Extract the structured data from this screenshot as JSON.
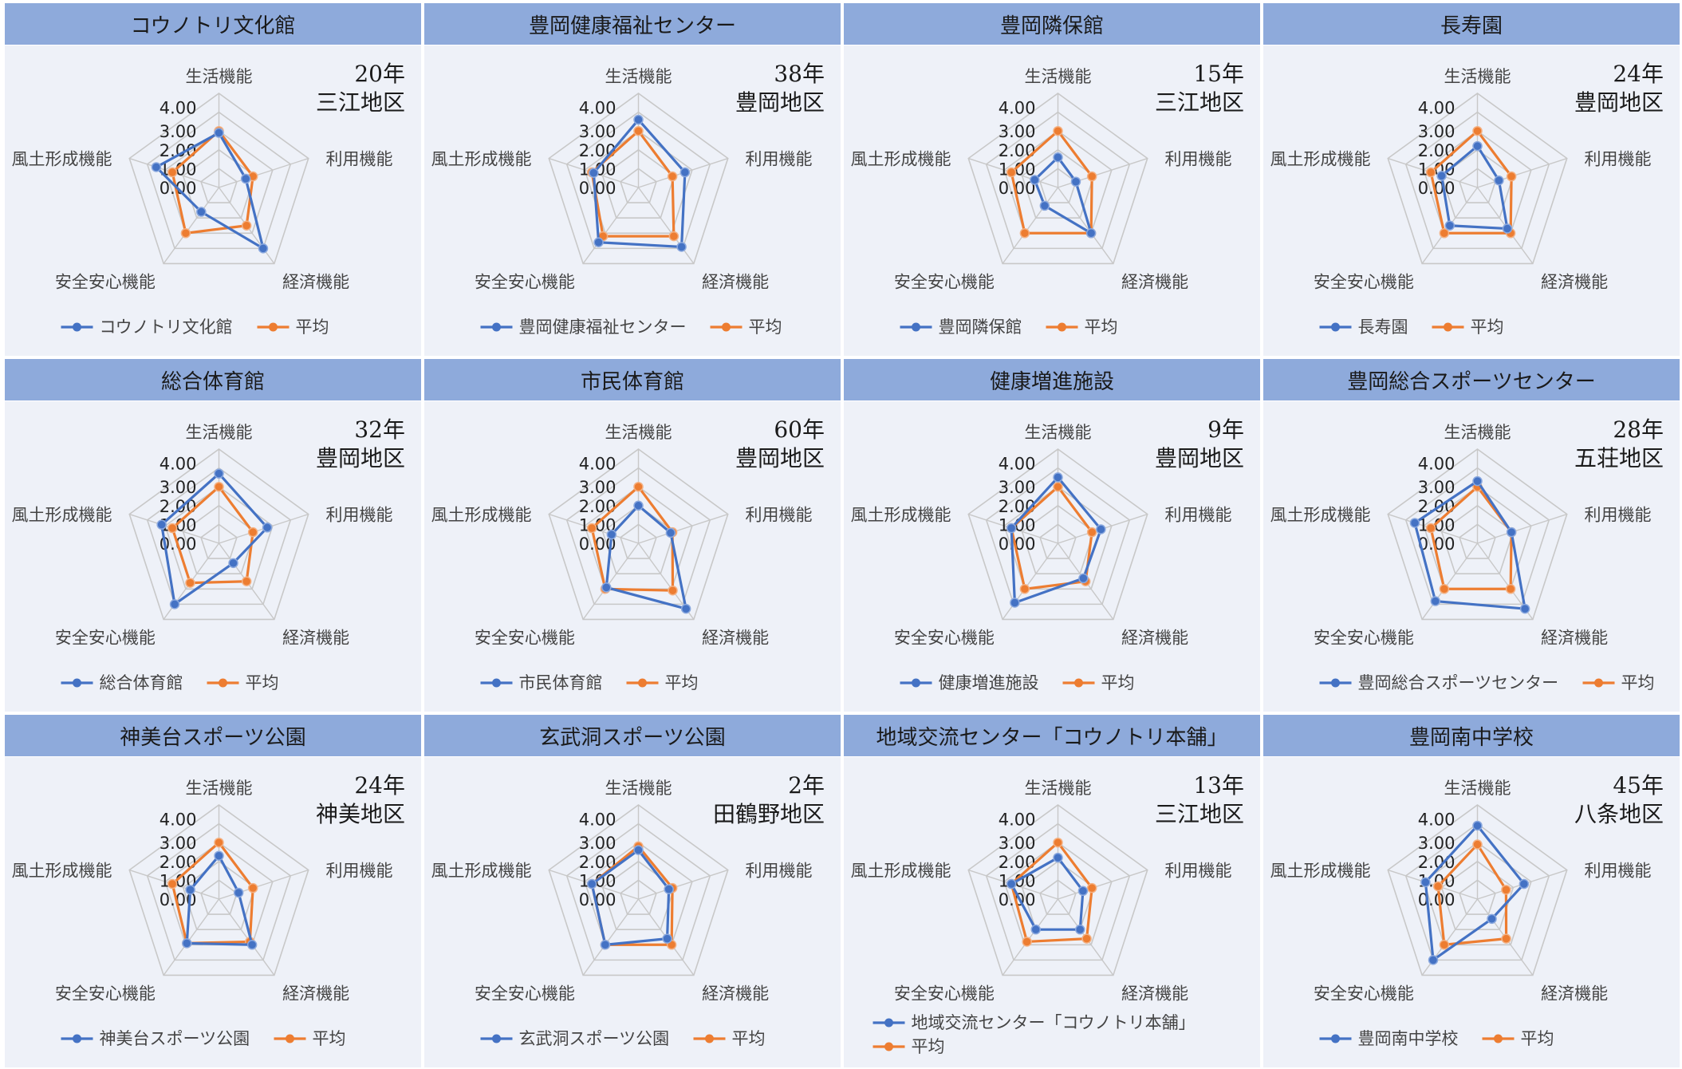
{
  "chart_data": [
    {
      "type": "radar",
      "title": "コウノトリ文化館",
      "age": "20年",
      "district": "三江地区",
      "axes": [
        "生活機能",
        "利用機能",
        "経済機能",
        "安全安心機能",
        "風土形成機能"
      ],
      "ticks": [
        "4.00",
        "3.00",
        "2.00",
        "1.00",
        "0.00"
      ],
      "rmax": 5,
      "series": [
        {
          "name": "コウノトリ文化館",
          "values": [
            2.9,
            1.5,
            4.0,
            1.6,
            3.5
          ],
          "color": "#4472c4"
        },
        {
          "name": "平均",
          "values": [
            3.0,
            1.9,
            2.5,
            3.0,
            2.6
          ],
          "color": "#ed7d31"
        }
      ]
    },
    {
      "type": "radar",
      "title": "豊岡健康福祉センター",
      "age": "38年",
      "district": "豊岡地区",
      "axes": [
        "生活機能",
        "利用機能",
        "経済機能",
        "安全安心機能",
        "風土形成機能"
      ],
      "ticks": [
        "4.00",
        "3.00",
        "2.00",
        "1.00",
        "0.00"
      ],
      "rmax": 5,
      "series": [
        {
          "name": "豊岡健康福祉センター",
          "values": [
            3.6,
            2.6,
            3.9,
            3.6,
            2.5
          ],
          "color": "#4472c4"
        },
        {
          "name": "平均",
          "values": [
            3.0,
            1.9,
            3.2,
            3.2,
            2.6
          ],
          "color": "#ed7d31"
        }
      ]
    },
    {
      "type": "radar",
      "title": "豊岡隣保館",
      "age": "15年",
      "district": "三江地区",
      "axes": [
        "生活機能",
        "利用機能",
        "経済機能",
        "安全安心機能",
        "風土形成機能"
      ],
      "ticks": [
        "4.00",
        "3.00",
        "2.00",
        "1.00",
        "0.00"
      ],
      "rmax": 5,
      "series": [
        {
          "name": "豊岡隣保館",
          "values": [
            1.6,
            1.0,
            3.0,
            1.2,
            1.3
          ],
          "color": "#4472c4"
        },
        {
          "name": "平均",
          "values": [
            3.0,
            1.9,
            3.0,
            3.0,
            2.6
          ],
          "color": "#ed7d31"
        }
      ]
    },
    {
      "type": "radar",
      "title": "長寿園",
      "age": "24年",
      "district": "豊岡地区",
      "axes": [
        "生活機能",
        "利用機能",
        "経済機能",
        "安全安心機能",
        "風土形成機能"
      ],
      "ticks": [
        "4.00",
        "3.00",
        "2.00",
        "1.00",
        "0.00"
      ],
      "rmax": 5,
      "series": [
        {
          "name": "長寿園",
          "values": [
            2.2,
            1.2,
            2.7,
            2.5,
            2.0
          ],
          "color": "#4472c4"
        },
        {
          "name": "平均",
          "values": [
            3.0,
            1.9,
            3.0,
            3.0,
            2.6
          ],
          "color": "#ed7d31"
        }
      ]
    },
    {
      "type": "radar",
      "title": "総合体育館",
      "age": "32年",
      "district": "豊岡地区",
      "axes": [
        "生活機能",
        "利用機能",
        "経済機能",
        "安全安心機能",
        "風土形成機能"
      ],
      "ticks": [
        "4.00",
        "3.00",
        "2.00",
        "1.00",
        "0.00"
      ],
      "rmax": 5,
      "series": [
        {
          "name": "総合体育館",
          "values": [
            3.7,
            2.7,
            1.3,
            4.0,
            3.2
          ],
          "color": "#4472c4"
        },
        {
          "name": "平均",
          "values": [
            3.0,
            1.9,
            2.5,
            2.6,
            2.6
          ],
          "color": "#ed7d31"
        }
      ]
    },
    {
      "type": "radar",
      "title": "市民体育館",
      "age": "60年",
      "district": "豊岡地区",
      "axes": [
        "生活機能",
        "利用機能",
        "経済機能",
        "安全安心機能",
        "風土形成機能"
      ],
      "ticks": [
        "4.00",
        "3.00",
        "2.00",
        "1.00",
        "0.00"
      ],
      "rmax": 5,
      "series": [
        {
          "name": "市民体育館",
          "values": [
            2.0,
            1.8,
            4.3,
            2.9,
            1.5
          ],
          "color": "#4472c4"
        },
        {
          "name": "平均",
          "values": [
            3.0,
            1.9,
            3.1,
            3.0,
            2.6
          ],
          "color": "#ed7d31"
        }
      ]
    },
    {
      "type": "radar",
      "title": "健康増進施設",
      "age": "9年",
      "district": "豊岡地区",
      "axes": [
        "生活機能",
        "利用機能",
        "経済機能",
        "安全安心機能",
        "風土形成機能"
      ],
      "ticks": [
        "4.00",
        "3.00",
        "2.00",
        "1.00",
        "0.00"
      ],
      "rmax": 5,
      "series": [
        {
          "name": "健康増進施設",
          "values": [
            3.5,
            2.4,
            2.3,
            3.9,
            2.6
          ],
          "color": "#4472c4"
        },
        {
          "name": "平均",
          "values": [
            3.0,
            1.9,
            2.5,
            3.0,
            2.6
          ],
          "color": "#ed7d31"
        }
      ]
    },
    {
      "type": "radar",
      "title": "豊岡総合スポーツセンター",
      "age": "28年",
      "district": "五荘地区",
      "axes": [
        "生活機能",
        "利用機能",
        "経済機能",
        "安全安心機能",
        "風土形成機能"
      ],
      "ticks": [
        "4.00",
        "3.00",
        "2.00",
        "1.00",
        "0.00"
      ],
      "rmax": 5,
      "series": [
        {
          "name": "豊岡総合スポーツセンター",
          "values": [
            3.3,
            1.9,
            4.3,
            3.8,
            3.5
          ],
          "color": "#4472c4"
        },
        {
          "name": "平均",
          "values": [
            3.0,
            1.9,
            3.0,
            3.0,
            2.6
          ],
          "color": "#ed7d31"
        }
      ]
    },
    {
      "type": "radar",
      "title": "神美台スポーツ公園",
      "age": "24年",
      "district": "神美地区",
      "axes": [
        "生活機能",
        "利用機能",
        "経済機能",
        "安全安心機能",
        "風土形成機能"
      ],
      "ticks": [
        "4.00",
        "3.00",
        "2.00",
        "1.00",
        "0.00"
      ],
      "rmax": 5,
      "series": [
        {
          "name": "神美台スポーツ公園",
          "values": [
            2.3,
            1.1,
            3.0,
            2.9,
            1.6
          ],
          "color": "#4472c4"
        },
        {
          "name": "平均",
          "values": [
            3.0,
            1.9,
            2.8,
            2.9,
            2.6
          ],
          "color": "#ed7d31"
        }
      ]
    },
    {
      "type": "radar",
      "title": "玄武洞スポーツ公園",
      "age": "2年",
      "district": "田鶴野地区",
      "axes": [
        "生活機能",
        "利用機能",
        "経済機能",
        "安全安心機能",
        "風土形成機能"
      ],
      "ticks": [
        "4.00",
        "3.00",
        "2.00",
        "1.00",
        "0.00"
      ],
      "rmax": 5,
      "series": [
        {
          "name": "玄武洞スポーツ公園",
          "values": [
            2.6,
            1.7,
            2.6,
            3.0,
            2.6
          ],
          "color": "#4472c4"
        },
        {
          "name": "平均",
          "values": [
            2.8,
            1.9,
            3.0,
            3.0,
            2.6
          ],
          "color": "#ed7d31"
        }
      ]
    },
    {
      "type": "radar",
      "title": "地域交流センター「コウノトリ本舗」",
      "age": "13年",
      "district": "三江地区",
      "axes": [
        "生活機能",
        "利用機能",
        "経済機能",
        "安全安心機能",
        "風土形成機能"
      ],
      "ticks": [
        "4.00",
        "3.00",
        "2.00",
        "1.00",
        "0.00"
      ],
      "rmax": 5,
      "series": [
        {
          "name": "地域交流センター「コウノトリ本舗」",
          "values": [
            2.2,
            1.4,
            2.0,
            2.0,
            2.6
          ],
          "color": "#4472c4"
        },
        {
          "name": "平均",
          "values": [
            3.0,
            1.9,
            2.6,
            2.8,
            2.6
          ],
          "color": "#ed7d31"
        }
      ]
    },
    {
      "type": "radar",
      "title": "豊岡南中学校",
      "age": "45年",
      "district": "八条地区",
      "axes": [
        "生活機能",
        "利用機能",
        "経済機能",
        "安全安心機能",
        "風土形成機能"
      ],
      "ticks": [
        "4.00",
        "3.00",
        "2.00",
        "1.00",
        "0.00"
      ],
      "rmax": 5,
      "series": [
        {
          "name": "豊岡南中学校",
          "values": [
            3.9,
            2.6,
            1.3,
            4.0,
            2.9
          ],
          "color": "#4472c4"
        },
        {
          "name": "平均",
          "values": [
            2.9,
            1.6,
            2.6,
            3.0,
            2.2
          ],
          "color": "#ed7d31"
        }
      ]
    }
  ]
}
